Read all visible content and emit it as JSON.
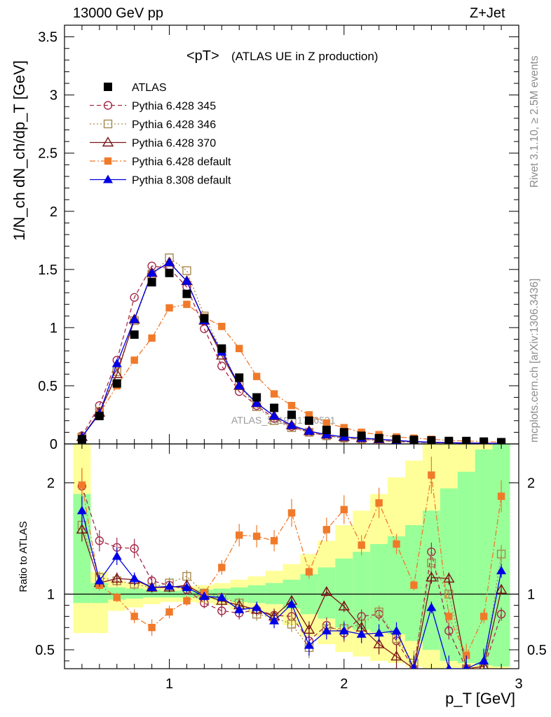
{
  "header": {
    "left": "13000 GeV pp",
    "right": "Z+Jet"
  },
  "side": {
    "rivet": "Rivet 3.1.10, ≥ 2.5M events",
    "mcplots": "mcplots.cern.ch [arXiv:1306.3436]"
  },
  "watermark": "ATLAS_2019_I1736531",
  "chart_data": [
    {
      "type": "scatter",
      "panel": "main",
      "title": "<pT>",
      "subtitle": "(ATLAS UE in Z production)",
      "ylabel": "1/N_ch dN_ch/dp_T [GeV]",
      "xlim": [
        0.4,
        3.0
      ],
      "ylim": [
        0,
        3.6
      ],
      "yticks": [
        "0",
        "0.5",
        "1",
        "1.5",
        "2",
        "2.5",
        "3",
        "3.5"
      ],
      "legend_position": "top-left",
      "x": [
        0.5,
        0.6,
        0.7,
        0.8,
        0.9,
        1.0,
        1.1,
        1.2,
        1.3,
        1.4,
        1.5,
        1.6,
        1.7,
        1.8,
        1.9,
        2.0,
        2.1,
        2.2,
        2.3,
        2.4,
        2.5,
        2.6,
        2.7,
        2.8,
        2.9
      ],
      "series": [
        {
          "name": "ATLAS",
          "color": "#000000",
          "marker": "square",
          "values": [
            0.04,
            0.24,
            0.52,
            0.94,
            1.39,
            1.47,
            1.29,
            1.08,
            0.82,
            0.57,
            0.4,
            0.31,
            0.25,
            0.2,
            0.12,
            0.1,
            0.07,
            0.05,
            0.04,
            0.035,
            0.03,
            0.025,
            0.025,
            0.02,
            0.015
          ]
        },
        {
          "name": "Pythia 6.428 345",
          "color": "#a52a4a",
          "marker": "circle-open",
          "dash": "dashed",
          "values": [
            0.07,
            0.33,
            0.72,
            1.26,
            1.53,
            1.51,
            1.35,
            0.99,
            0.67,
            0.45,
            0.33,
            0.22,
            0.15,
            0.1,
            0.07,
            0.05,
            0.04,
            0.03,
            0.02,
            0.015,
            0.01,
            0.01,
            0.008,
            0.006,
            0.004
          ]
        },
        {
          "name": "Pythia 6.428 346",
          "color": "#a88a4e",
          "marker": "square-open",
          "dash": "dotted",
          "values": [
            0.06,
            0.28,
            0.62,
            1.06,
            1.46,
            1.6,
            1.49,
            1.1,
            0.8,
            0.5,
            0.32,
            0.2,
            0.14,
            0.1,
            0.07,
            0.05,
            0.04,
            0.03,
            0.02,
            0.015,
            0.01,
            0.01,
            0.008,
            0.006,
            0.004
          ]
        },
        {
          "name": "Pythia 6.428 370",
          "color": "#7a1414",
          "marker": "triangle-open",
          "dash": "solid",
          "values": [
            0.06,
            0.27,
            0.6,
            1.07,
            1.47,
            1.56,
            1.4,
            1.06,
            0.76,
            0.5,
            0.35,
            0.24,
            0.16,
            0.11,
            0.08,
            0.06,
            0.05,
            0.04,
            0.03,
            0.02,
            0.015,
            0.01,
            0.008,
            0.006,
            0.004
          ]
        },
        {
          "name": "Pythia 6.428 default",
          "color": "#f07a2a",
          "marker": "square-small",
          "dash": "dashdot",
          "values": [
            0.06,
            0.26,
            0.5,
            0.72,
            0.91,
            1.17,
            1.2,
            1.09,
            1.01,
            0.82,
            0.58,
            0.43,
            0.33,
            0.25,
            0.18,
            0.14,
            0.1,
            0.08,
            0.06,
            0.05,
            0.04,
            0.03,
            0.025,
            0.02,
            0.015
          ]
        },
        {
          "name": "Pythia 8.308 default",
          "color": "#0000e6",
          "marker": "triangle",
          "dash": "solid",
          "values": [
            0.06,
            0.26,
            0.69,
            1.07,
            1.47,
            1.56,
            1.4,
            1.06,
            0.79,
            0.5,
            0.35,
            0.24,
            0.16,
            0.11,
            0.08,
            0.06,
            0.05,
            0.04,
            0.03,
            0.02,
            0.015,
            0.01,
            0.008,
            0.006,
            0.004
          ]
        }
      ]
    },
    {
      "type": "scatter",
      "panel": "ratio",
      "ylabel": "Ratio to ATLAS",
      "xlabel": "p_T [GeV]",
      "xlim": [
        0.4,
        3.0
      ],
      "ylim": [
        0.33,
        2.35
      ],
      "yticks": [
        "0.5",
        "1",
        "2"
      ],
      "xticks": [
        "1",
        "2",
        "3"
      ],
      "x": [
        0.5,
        0.6,
        0.7,
        0.8,
        0.9,
        1.0,
        1.1,
        1.2,
        1.3,
        1.4,
        1.5,
        1.6,
        1.7,
        1.8,
        1.9,
        2.0,
        2.1,
        2.2,
        2.3,
        2.4,
        2.5,
        2.6,
        2.7,
        2.8,
        2.9
      ],
      "band_1sigma": [
        0.92,
        0.92,
        0.95,
        0.96,
        0.97,
        0.97,
        0.97,
        0.96,
        0.95,
        0.93,
        0.92,
        0.91,
        0.87,
        0.82,
        0.78,
        0.7,
        0.68,
        0.66,
        0.64,
        0.58,
        0.5,
        0.4,
        0.38,
        0.36,
        0.35
      ],
      "band_1sigma_hi": [
        1.9,
        1.1,
        1.06,
        1.05,
        1.04,
        1.03,
        1.03,
        1.04,
        1.05,
        1.06,
        1.08,
        1.1,
        1.13,
        1.18,
        1.24,
        1.32,
        1.38,
        1.45,
        1.52,
        1.62,
        1.75,
        1.95,
        2.1,
        2.3,
        2.35
      ],
      "band_2sigma": [
        0.65,
        0.65,
        0.85,
        0.88,
        0.91,
        0.93,
        0.93,
        0.92,
        0.9,
        0.86,
        0.83,
        0.79,
        0.72,
        0.62,
        0.55,
        0.48,
        0.44,
        0.4,
        0.38,
        0.35,
        0.33,
        0.33,
        0.33,
        0.33,
        0.33
      ],
      "band_2sigma_hi": [
        2.35,
        1.2,
        1.12,
        1.1,
        1.08,
        1.07,
        1.07,
        1.08,
        1.1,
        1.13,
        1.16,
        1.21,
        1.27,
        1.36,
        1.48,
        1.62,
        1.75,
        1.9,
        2.05,
        2.2,
        2.35,
        2.35,
        2.35,
        2.35,
        2.35
      ],
      "series": [
        {
          "name": "Pythia 6.428 345",
          "color": "#a52a4a",
          "marker": "circle-open",
          "dash": "dashed",
          "values": [
            1.97,
            1.48,
            1.42,
            1.41,
            1.12,
            1.08,
            1.04,
            0.92,
            0.85,
            0.83,
            0.86,
            0.81,
            0.8,
            0.58,
            0.72,
            0.65,
            0.8,
            0.82,
            0.58,
            0.3,
            1.38,
            0.67,
            0.3,
            0.3,
            0.82
          ]
        },
        {
          "name": "Pythia 6.428 346",
          "color": "#a88a4e",
          "marker": "square-open",
          "dash": "dotted",
          "values": [
            1.62,
            1.15,
            1.12,
            1.09,
            1.06,
            1.1,
            1.16,
            1.01,
            0.97,
            0.92,
            0.82,
            0.79,
            0.73,
            0.52,
            0.69,
            0.69,
            0.73,
            0.84,
            0.6,
            0.38,
            1.28,
            1.0,
            0.3,
            0.3,
            1.36
          ]
        },
        {
          "name": "Pythia 6.428 370",
          "color": "#7a1414",
          "marker": "triangle-open",
          "dash": "solid",
          "values": [
            1.58,
            1.1,
            1.14,
            1.13,
            1.06,
            1.06,
            1.08,
            0.99,
            0.94,
            0.9,
            0.86,
            0.8,
            0.94,
            0.68,
            1.02,
            0.89,
            0.7,
            0.55,
            0.44,
            0.3,
            1.15,
            1.14,
            0.3,
            0.35,
            1.04
          ]
        },
        {
          "name": "Pythia 6.428 default",
          "color": "#f07a2a",
          "marker": "square-small",
          "dash": "dashdot",
          "values": [
            1.98,
            1.08,
            0.97,
            0.8,
            0.7,
            0.84,
            0.94,
            1.01,
            1.24,
            1.53,
            1.52,
            1.48,
            1.73,
            1.2,
            1.58,
            1.76,
            1.44,
            1.82,
            1.45,
            1.08,
            2.07,
            0.8,
            0.45,
            0.8,
            1.88
          ]
        },
        {
          "name": "Pythia 8.308 default",
          "color": "#0000e6",
          "marker": "triangle",
          "dash": "solid",
          "values": [
            1.75,
            1.12,
            1.34,
            1.14,
            1.06,
            1.07,
            1.06,
            0.98,
            0.97,
            0.86,
            0.88,
            0.76,
            0.91,
            0.54,
            0.67,
            0.67,
            0.64,
            0.65,
            0.67,
            0.3,
            0.88,
            0.3,
            0.3,
            0.4,
            1.21
          ]
        }
      ]
    }
  ]
}
